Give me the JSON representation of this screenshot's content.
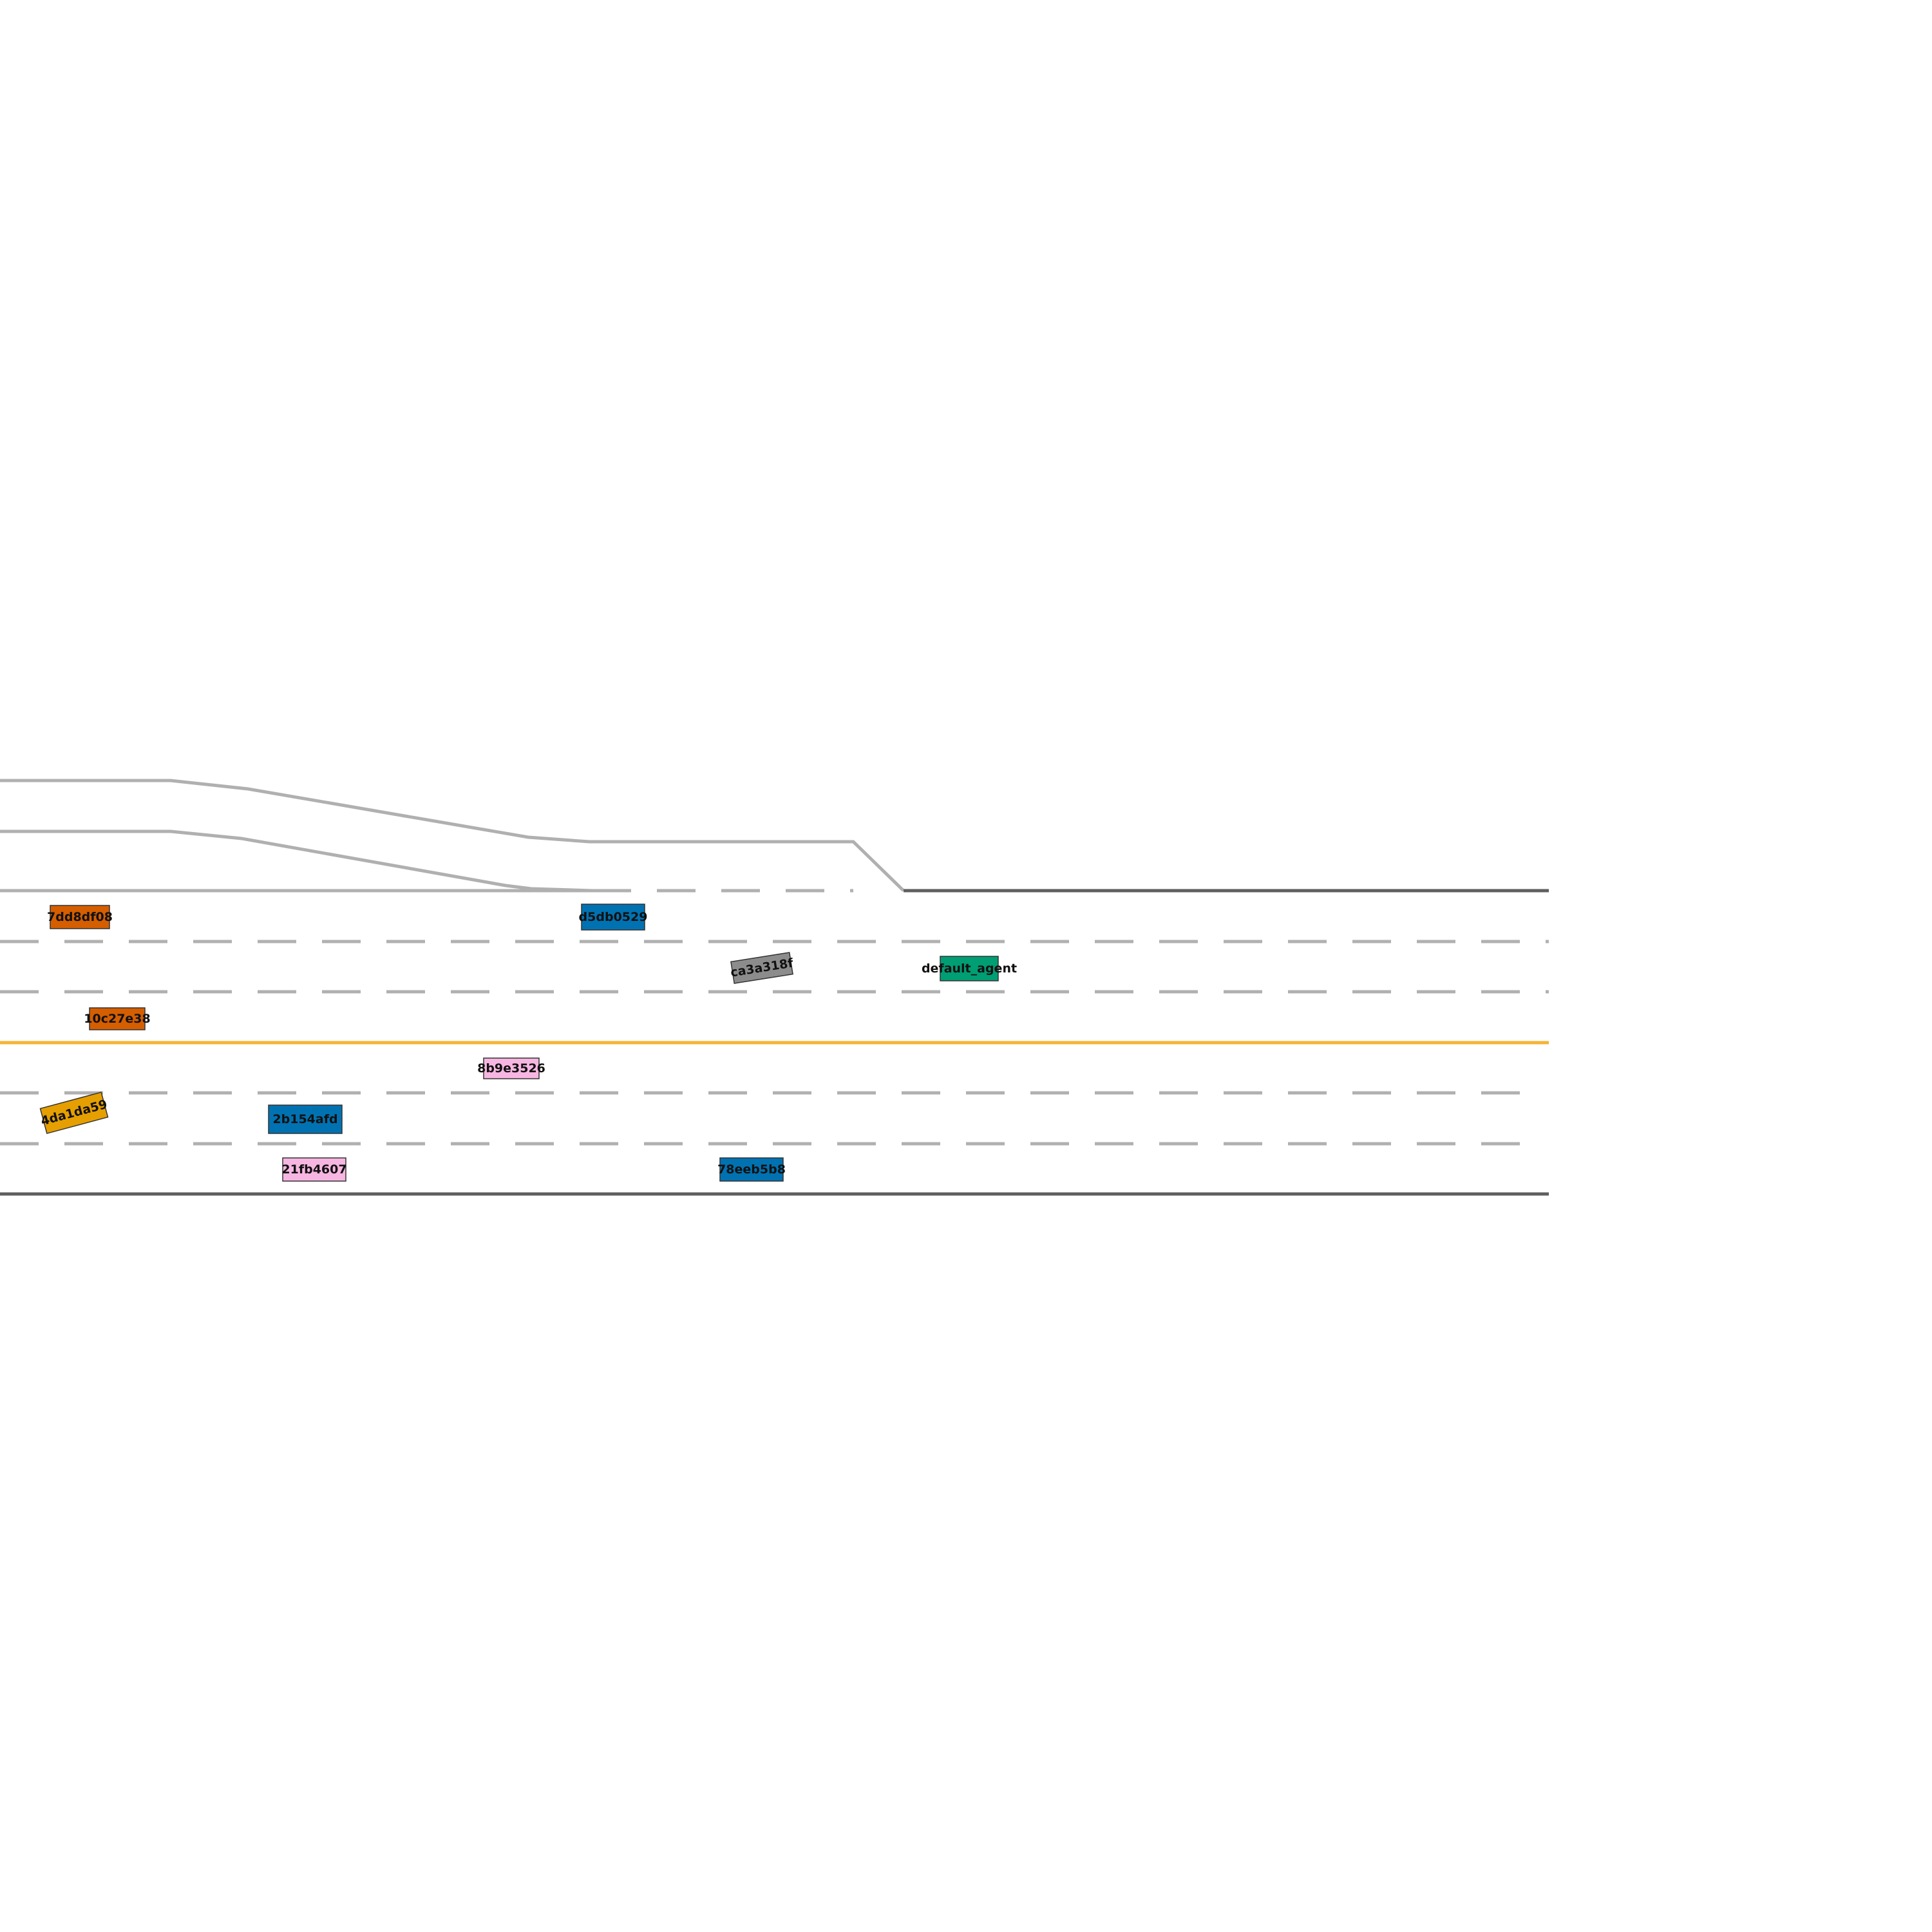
{
  "colors": {
    "background": "#ffffff",
    "lane_divider": "#b0b0b0",
    "road_edge": "#5f5f5f",
    "center_line": "#f5b335",
    "vehicle_outline": "#333333"
  },
  "vehicles": [
    {
      "id": "7dd8df08",
      "label": "7dd8df08",
      "color": "#d55e00"
    },
    {
      "id": "d5db0529",
      "label": "d5db0529",
      "color": "#0072b2"
    },
    {
      "id": "ca3a318f",
      "label": "ca3a318f",
      "color": "#8c8c8c"
    },
    {
      "id": "default_agent",
      "label": "default_agent",
      "color": "#009e73"
    },
    {
      "id": "10c27e38",
      "label": "10c27e38",
      "color": "#d55e00"
    },
    {
      "id": "8b9e3526",
      "label": "8b9e3526",
      "color": "#f7b6e2"
    },
    {
      "id": "4da1da59",
      "label": "4da1da59",
      "color": "#e69f00"
    },
    {
      "id": "2b154afd",
      "label": "2b154afd",
      "color": "#0072b2"
    },
    {
      "id": "21fb4607",
      "label": "21fb4607",
      "color": "#f7b6e2"
    },
    {
      "id": "78eeb5b8",
      "label": "78eeb5b8",
      "color": "#0072b2"
    }
  ]
}
